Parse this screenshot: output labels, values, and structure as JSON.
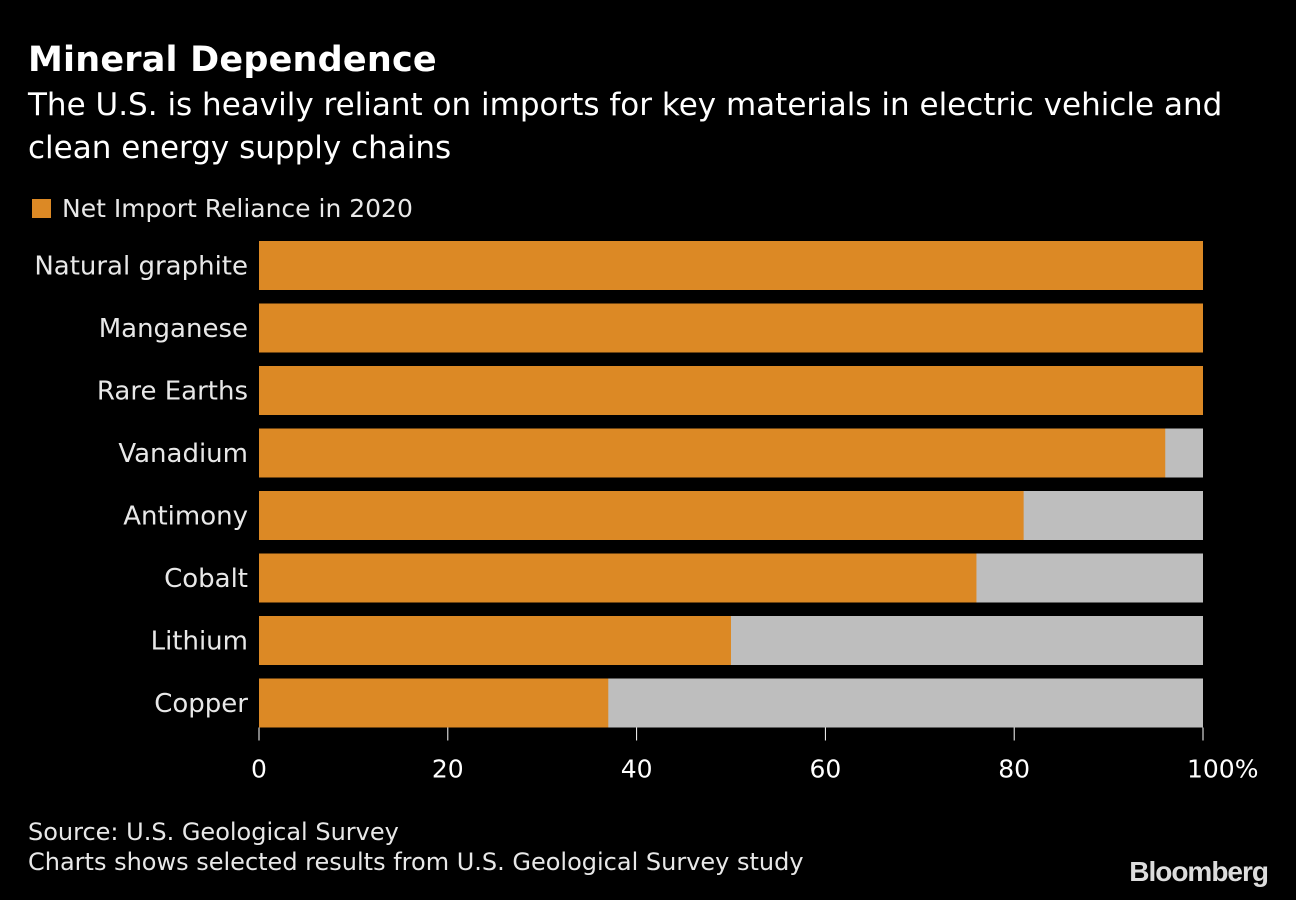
{
  "chart_data": {
    "type": "bar",
    "orientation": "horizontal",
    "stacked": true,
    "title": "Mineral Dependence",
    "subtitle": "The U.S. is heavily reliant on imports for key materials in electric vehicle and clean energy supply chains",
    "categories": [
      "Natural graphite",
      "Manganese",
      "Rare Earths",
      "Vanadium",
      "Antimony",
      "Cobalt",
      "Lithium",
      "Copper"
    ],
    "series": [
      {
        "name": "Net Import Reliance in 2020",
        "color": "#dc8925",
        "values": [
          100,
          100,
          100,
          96,
          81,
          76,
          50,
          37
        ]
      }
    ],
    "remainder_color": "#bebebe",
    "xlim": [
      0,
      100
    ],
    "xticks": [
      "0",
      "20",
      "40",
      "60",
      "80",
      "100%"
    ],
    "grid": false,
    "legend": "top-left"
  },
  "footer": {
    "source": "Source: U.S. Geological Survey",
    "note": "Charts shows selected results from U.S. Geological Survey study",
    "brand": "Bloomberg"
  }
}
